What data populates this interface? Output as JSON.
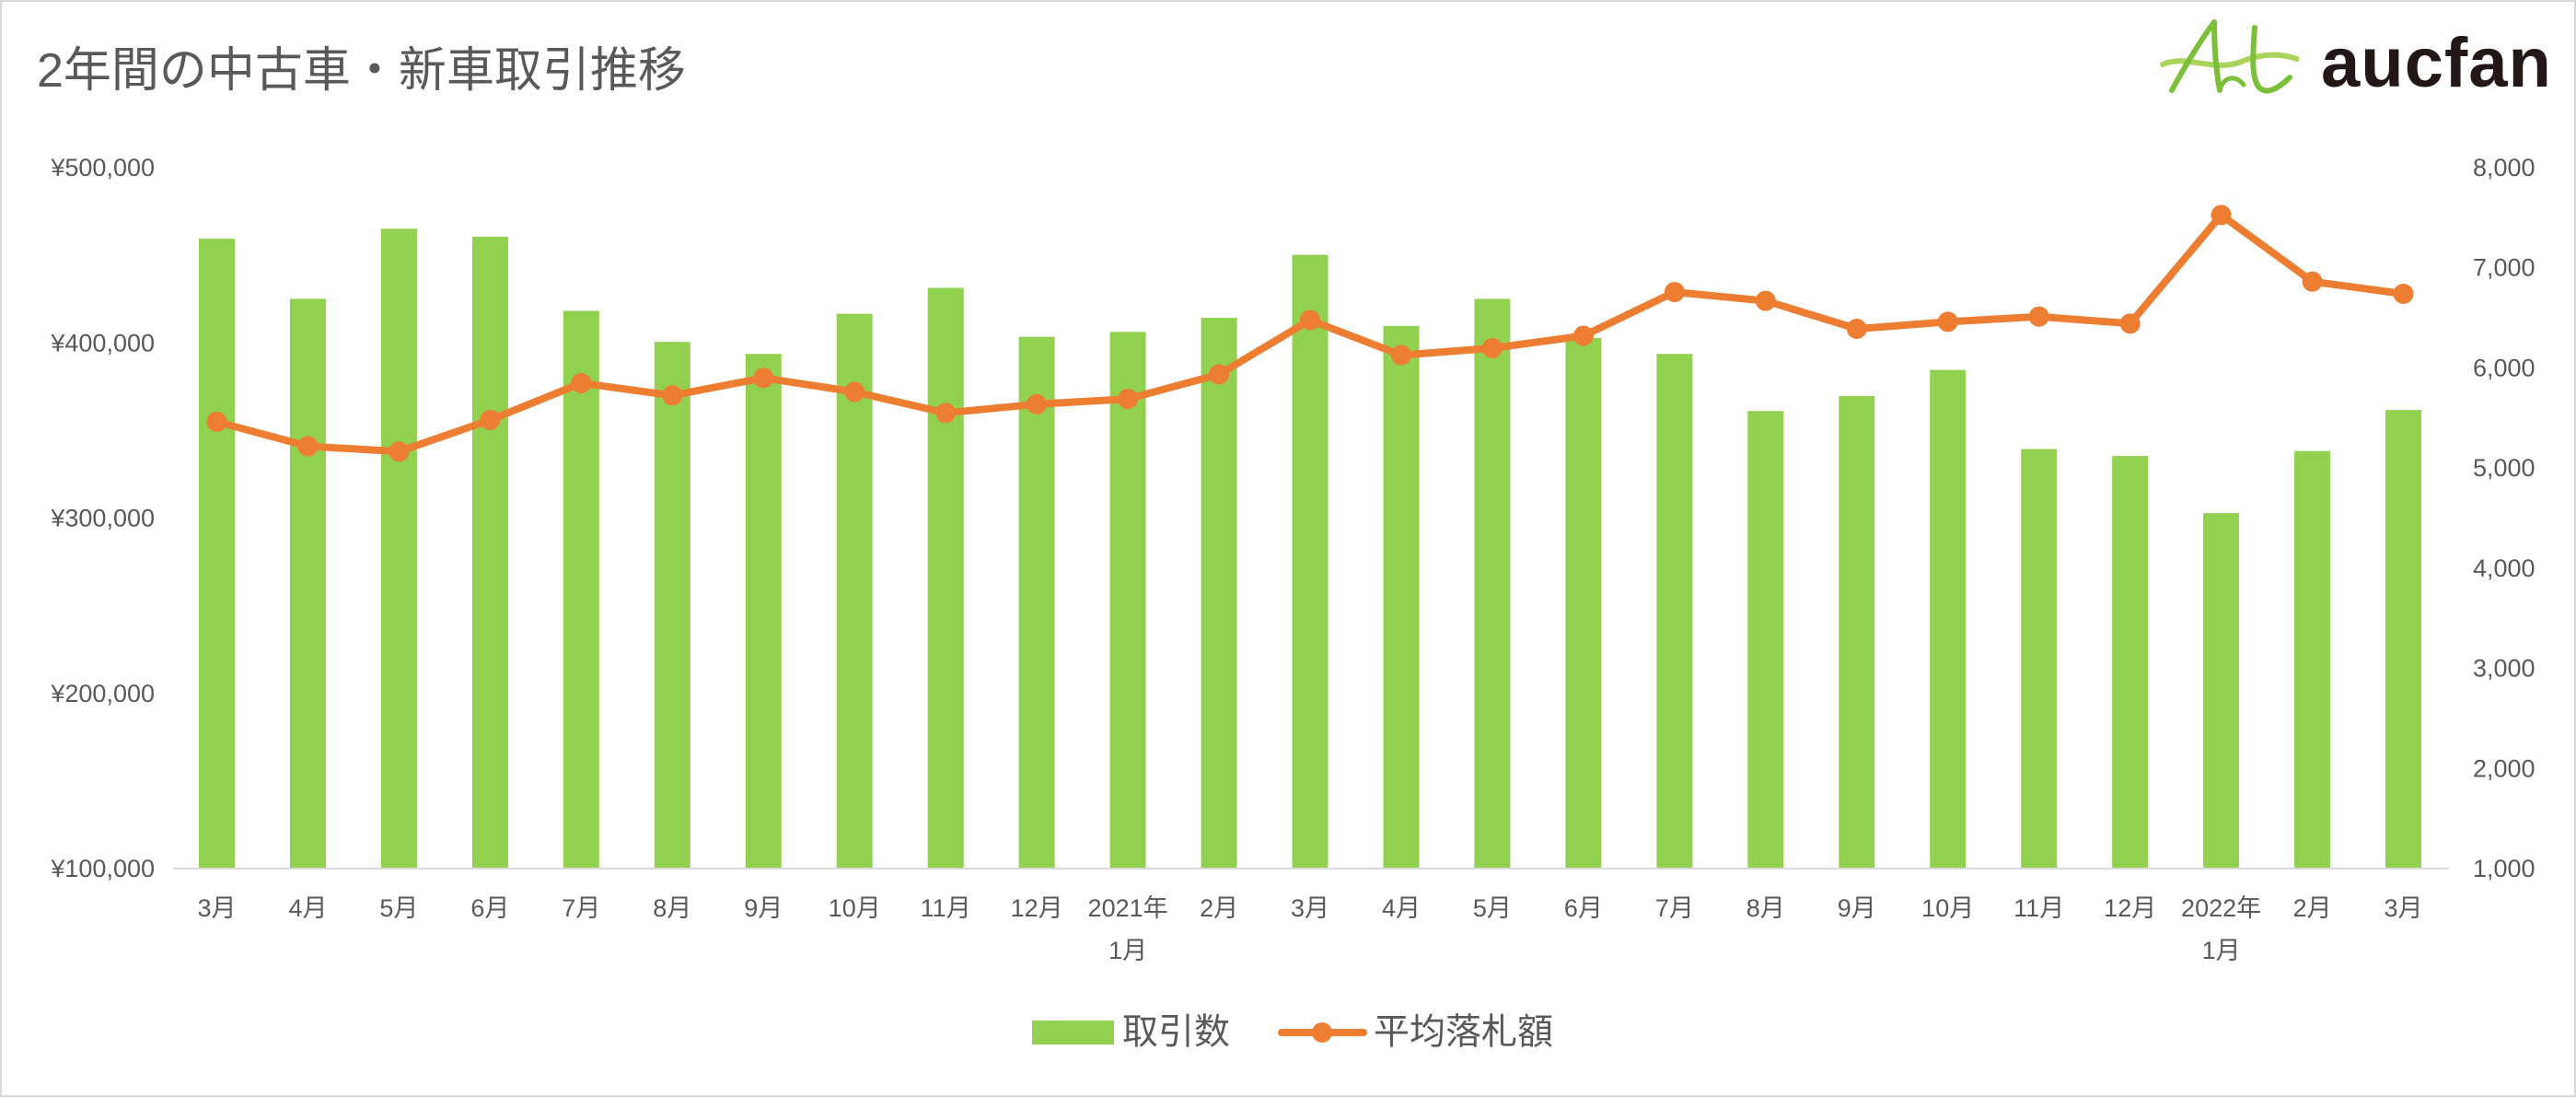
{
  "logo": {
    "text": "aucfan",
    "mark_icon": "aucfan-at-mark-icon"
  },
  "colors": {
    "bars": "#92D050",
    "line": "#ED7D31",
    "text": "#595959",
    "axis_line": "#D9D9D9",
    "logo_letters": "#7CBF3A",
    "logo_swoosh": "#A9D35B",
    "logo_text": "#231815"
  },
  "chart_data": {
    "type": "bar",
    "title": "2年間の中古車・新車取引推移",
    "xlabel": "",
    "ylabel": "",
    "grid": false,
    "categories": [
      "3月",
      "4月",
      "5月",
      "6月",
      "7月",
      "8月",
      "9月",
      "10月",
      "11月",
      "12月",
      "1月",
      "2月",
      "3月",
      "4月",
      "5月",
      "6月",
      "7月",
      "8月",
      "9月",
      "10月",
      "11月",
      "12月",
      "1月",
      "2月",
      "3月"
    ],
    "year_markers": [
      {
        "index": 10,
        "label": "2021年"
      },
      {
        "index": 22,
        "label": "2022年"
      }
    ],
    "series": [
      {
        "name": "取引数",
        "type": "bar",
        "axis": "right",
        "values": [
          7290,
          6690,
          7390,
          7310,
          6570,
          6260,
          6140,
          6540,
          6800,
          6310,
          6360,
          6500,
          7130,
          6420,
          6690,
          6300,
          6140,
          5570,
          5720,
          5980,
          5190,
          5120,
          4550,
          5170,
          5580
        ]
      },
      {
        "name": "平均落札額",
        "type": "line",
        "axis": "left",
        "values": [
          355000,
          341000,
          338000,
          356000,
          377000,
          370000,
          380000,
          372000,
          360000,
          365000,
          368000,
          382000,
          413000,
          393000,
          397000,
          404000,
          429000,
          424000,
          408000,
          412000,
          415000,
          411000,
          473000,
          435000,
          428000
        ]
      }
    ],
    "y_left": {
      "min": 100000,
      "max": 500000,
      "ticks": [
        100000,
        200000,
        300000,
        400000,
        500000
      ],
      "tick_labels": [
        "¥100,000",
        "¥200,000",
        "¥300,000",
        "¥400,000",
        "¥500,000"
      ]
    },
    "y_right": {
      "min": 1000,
      "max": 8000,
      "ticks": [
        1000,
        2000,
        3000,
        4000,
        5000,
        6000,
        7000,
        8000
      ],
      "tick_labels": [
        "1,000",
        "2,000",
        "3,000",
        "4,000",
        "5,000",
        "6,000",
        "7,000",
        "8,000"
      ]
    },
    "legend": {
      "position": "bottom"
    }
  }
}
